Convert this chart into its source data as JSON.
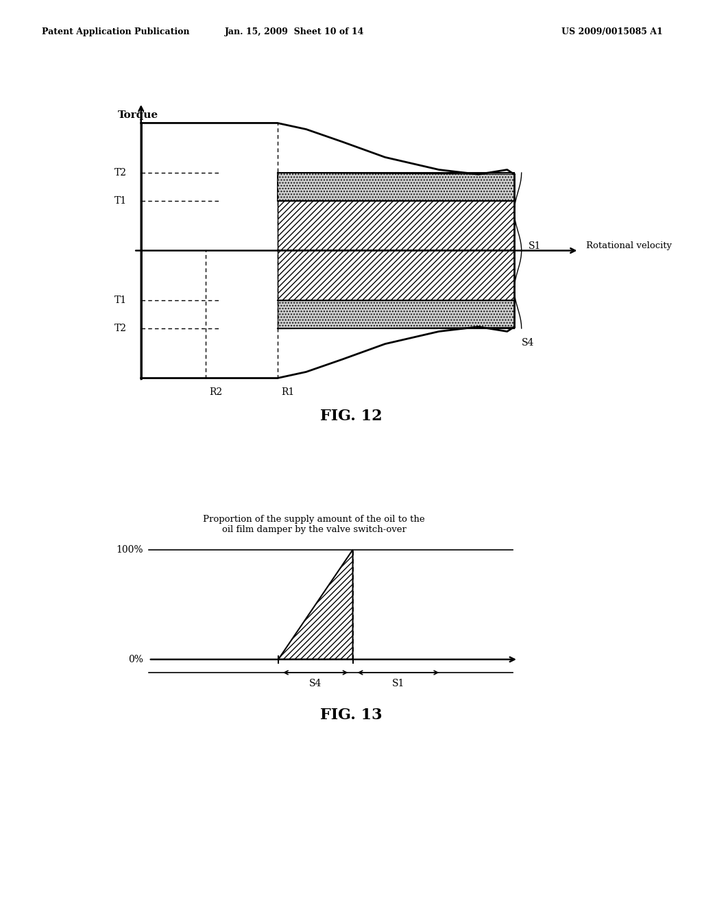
{
  "header_left": "Patent Application Publication",
  "header_mid": "Jan. 15, 2009  Sheet 10 of 14",
  "header_right": "US 2009/0015085 A1",
  "fig12_title": "FIG. 12",
  "fig13_title": "FIG. 13",
  "fig12_ylabel": "Torque",
  "fig12_xlabel": "Rotational velocity",
  "fig13_title_text": "Proportion of the supply amount of the oil to the\noil film damper by the valve switch-over",
  "fig13_ylabel_100": "100%",
  "fig13_ylabel_0": "0%",
  "fig13_S4_label": "S4",
  "fig13_S1_label": "S1",
  "bg_color": "#ffffff",
  "line_color": "#000000"
}
